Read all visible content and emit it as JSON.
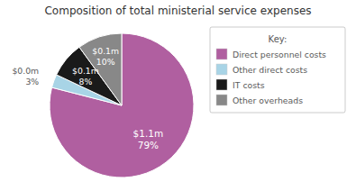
{
  "chart_data": {
    "type": "pie",
    "title": "Composition of total ministerial service expenses",
    "categories": [
      "Direct personnel costs",
      "Other direct costs",
      "IT costs",
      "Other overheads"
    ],
    "values": [
      79,
      3,
      8,
      10
    ],
    "value_labels": [
      "$1.1m\n79%",
      "$0.0m\n3%",
      "$0.1m\n8%",
      "$0.1m\n10%"
    ],
    "colors": [
      "#b05fa0",
      "#a8d4e6",
      "#1a1a1a",
      "#888888"
    ],
    "legend_title": "Key:",
    "legend": "right",
    "data_labels": true
  }
}
